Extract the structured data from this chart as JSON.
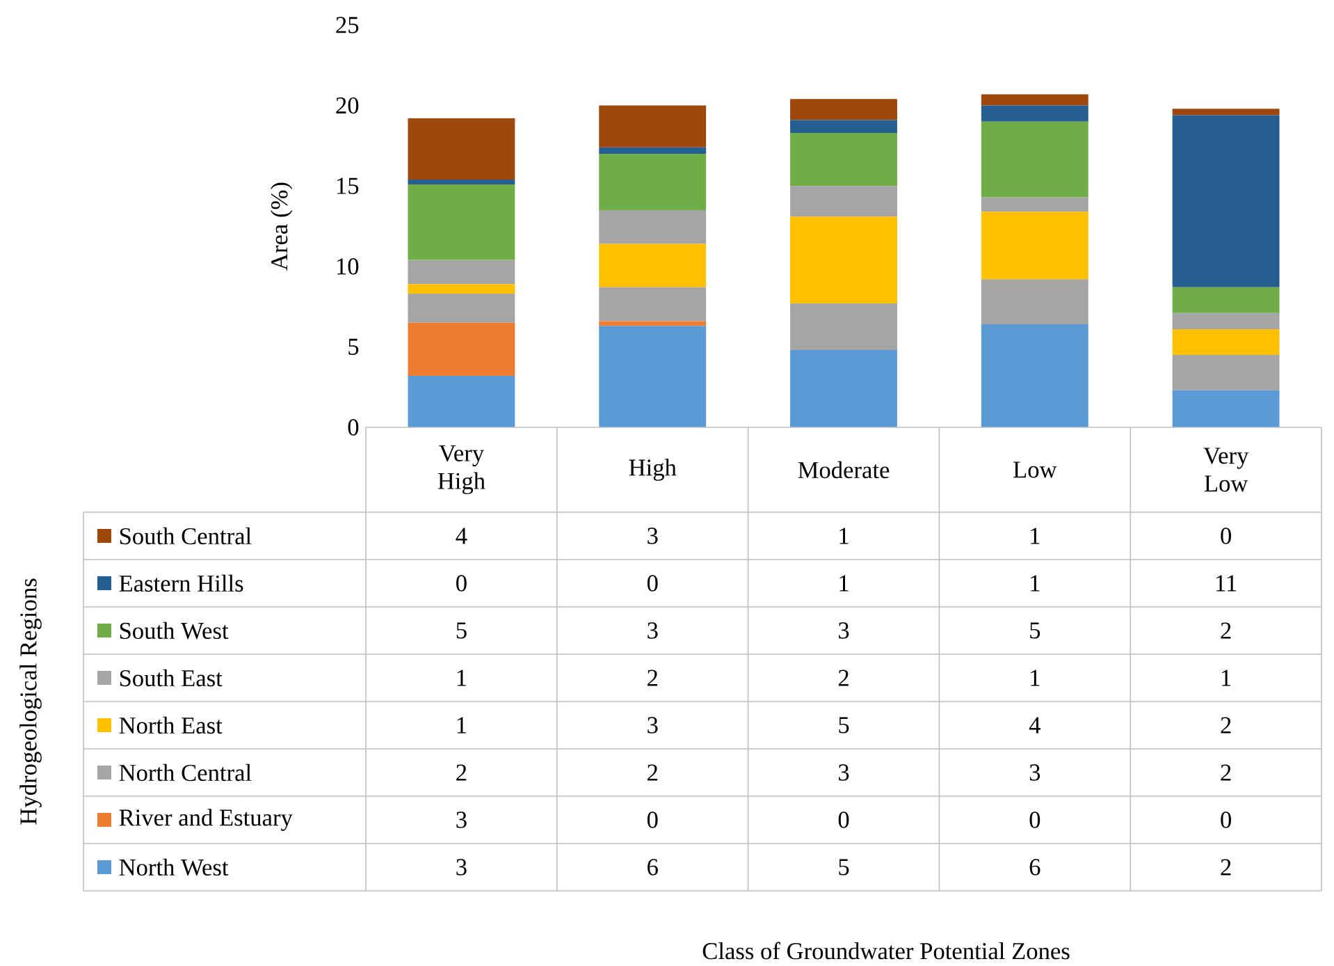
{
  "chart_data": {
    "type": "bar",
    "stacked": true,
    "ylabel": "Area (%)",
    "annotations": [
      "Class of Groundwater Potential Zones"
    ],
    "legend_title": "Hydrogeological Regions",
    "categories": [
      "Very High",
      "High",
      "Moderate",
      "Low",
      "Very Low"
    ],
    "ylim": [
      0,
      25
    ],
    "yticks": [
      0,
      5,
      10,
      15,
      20,
      25
    ],
    "legend": "bottom",
    "series": [
      {
        "name": "North West",
        "color": "#5b9bd5",
        "values": [
          3.2,
          6.3,
          4.8,
          6.4,
          2.3
        ],
        "value_labels": [
          "3",
          "6",
          "5",
          "6",
          "2"
        ]
      },
      {
        "name": "River and Estuary",
        "color": "#ed7d31",
        "values": [
          3.3,
          0.3,
          0,
          0,
          0
        ],
        "value_labels": [
          "3",
          "0",
          "0",
          "0",
          "0"
        ]
      },
      {
        "name": "North Central",
        "color": "#a5a5a5",
        "values": [
          1.8,
          2.1,
          2.9,
          2.8,
          2.2
        ],
        "value_labels": [
          "2",
          "2",
          "3",
          "3",
          "2"
        ]
      },
      {
        "name": "North East",
        "color": "#ffc000",
        "values": [
          0.6,
          2.7,
          5.4,
          4.2,
          1.6
        ],
        "value_labels": [
          "1",
          "3",
          "5",
          "4",
          "2"
        ]
      },
      {
        "name": "South East",
        "color": "#a5a5a5",
        "values": [
          1.5,
          2.1,
          1.9,
          0.9,
          1.0
        ],
        "value_labels": [
          "1",
          "2",
          "2",
          "1",
          "1"
        ]
      },
      {
        "name": "South West",
        "color": "#70ad47",
        "values": [
          4.7,
          3.5,
          3.3,
          4.7,
          1.6
        ],
        "value_labels": [
          "5",
          "3",
          "3",
          "5",
          "2"
        ]
      },
      {
        "name": "Eastern Hills",
        "color": "#255e91",
        "values": [
          0.3,
          0.4,
          0.8,
          1.0,
          10.7
        ],
        "value_labels": [
          "0",
          "0",
          "1",
          "1",
          "11"
        ]
      },
      {
        "name": "South Central",
        "color": "#9e480e",
        "values": [
          3.8,
          2.6,
          1.3,
          0.7,
          0.4
        ],
        "value_labels": [
          "4",
          "3",
          "1",
          "1",
          "0"
        ]
      }
    ]
  }
}
